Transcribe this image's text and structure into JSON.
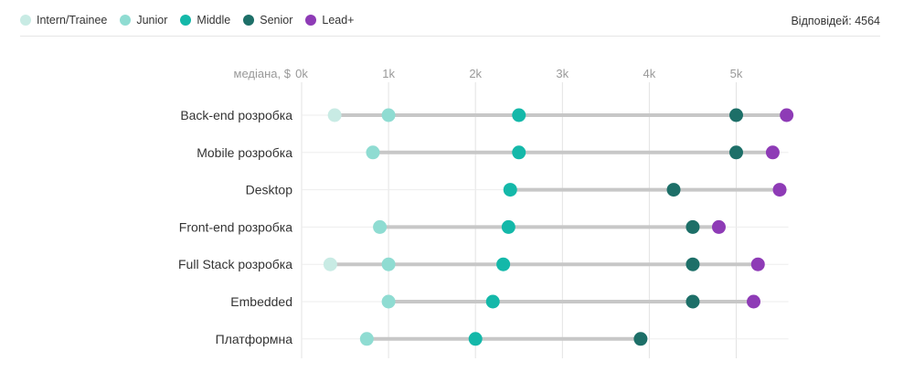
{
  "header": {
    "responses_label": "Відповідей: 4564"
  },
  "chart_data": {
    "type": "dot-range",
    "title": "",
    "xlabel": "медіана, $",
    "xlim": [
      0,
      5600
    ],
    "grid": true,
    "legend": "top-left",
    "x_ticks": [
      {
        "value": 0,
        "label": "0k"
      },
      {
        "value": 1000,
        "label": "1k"
      },
      {
        "value": 2000,
        "label": "2k"
      },
      {
        "value": 3000,
        "label": "3k"
      },
      {
        "value": 4000,
        "label": "4k"
      },
      {
        "value": 5000,
        "label": "5k"
      }
    ],
    "categories": [
      "Back-end розробка",
      "Mobile розробка",
      "Desktop",
      "Front-end розробка",
      "Full Stack розробка",
      "Embedded",
      "Платформна"
    ],
    "series": [
      {
        "name": "Intern/Trainee",
        "color": "#c8ebe4",
        "values": [
          380,
          null,
          null,
          null,
          330,
          null,
          null
        ]
      },
      {
        "name": "Junior",
        "color": "#8fdcd2",
        "values": [
          1000,
          820,
          null,
          900,
          1000,
          1000,
          750
        ]
      },
      {
        "name": "Middle",
        "color": "#14b8a9",
        "values": [
          2500,
          2500,
          2400,
          2380,
          2320,
          2200,
          2000
        ]
      },
      {
        "name": "Senior",
        "color": "#1d6f68",
        "values": [
          5000,
          5000,
          4280,
          4500,
          4500,
          4500,
          3900
        ]
      },
      {
        "name": "Lead+",
        "color": "#8e3bb6",
        "values": [
          5580,
          5420,
          5500,
          4800,
          5250,
          5200,
          null
        ]
      }
    ]
  }
}
